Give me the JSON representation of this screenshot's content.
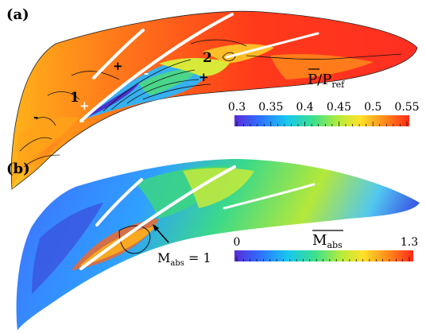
{
  "panels": [
    {
      "label": "(a)",
      "markers": [
        "1",
        "2"
      ],
      "signs": [
        "+",
        "+",
        "+",
        "-",
        "-",
        "-"
      ],
      "colorbar": {
        "title_main": "P",
        "title_sep": "/P",
        "title_sub": "ref",
        "overline": true,
        "ticks": [
          "0.3",
          "0.35",
          "0.4",
          "0.45",
          "0.5",
          "0.55"
        ],
        "colors": [
          "#5a2ad6",
          "#2f6fff",
          "#18c8ee",
          "#3ce08c",
          "#b8ec3a",
          "#ffe02a",
          "#ff8a1a",
          "#ff2a1a"
        ]
      }
    },
    {
      "label": "(b)",
      "annotation": {
        "main": "M",
        "sub": "abs",
        "rest": " = 1"
      },
      "colorbar": {
        "title_main": "M",
        "title_sub": "abs",
        "overline": true,
        "ticks": [
          "0",
          "1.3"
        ],
        "colors": [
          "#5a2ad6",
          "#2f6fff",
          "#18c8ee",
          "#3ce08c",
          "#b8ec3a",
          "#ffe02a",
          "#ff8a1a",
          "#ff2a1a"
        ]
      }
    }
  ]
}
